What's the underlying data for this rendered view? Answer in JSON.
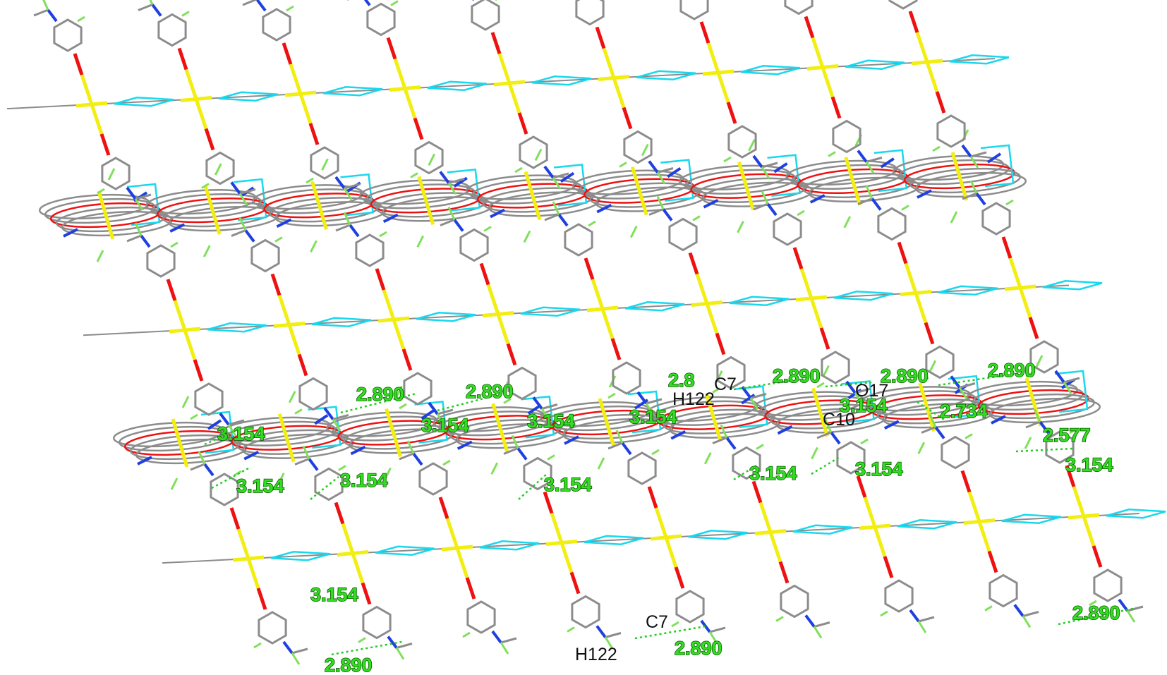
{
  "figure": {
    "type": "crystal-packing-diagram",
    "colors": {
      "background": "#ffffff",
      "carbon": "#8c8c8c",
      "hydrogen": "#7fe05a",
      "nitrogen": "#1f3fe0",
      "oxygen": "#ee1111",
      "metal": "#f2ee12",
      "anion_link": "#19d8ee",
      "contact_line": "#22cc22",
      "distance_label": "#33dd22",
      "atom_label": "#111111"
    }
  },
  "distance_labels": [
    "2.890",
    "2.890",
    "2.8",
    "2.890",
    "2.890",
    "2.890",
    "3.154",
    "3.154",
    "3.154",
    "3.154",
    "2.734",
    "2.577",
    "3.154",
    "3.154",
    "3.154",
    "3.154",
    "3.154",
    "3.154",
    "3.154",
    "3.154",
    "2.890",
    "2.890",
    "2.890"
  ],
  "atom_labels": [
    "C7",
    "H122",
    "O17",
    "C10",
    "C7",
    "H122"
  ]
}
